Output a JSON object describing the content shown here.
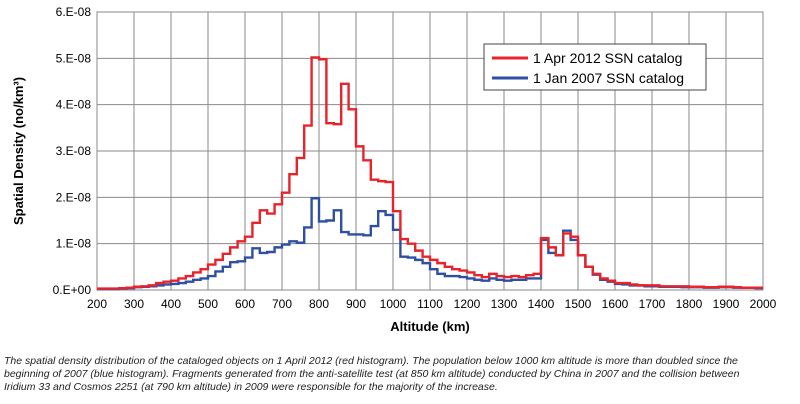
{
  "chart_data": {
    "type": "line",
    "step": true,
    "xlabel": "Altitude (km)",
    "ylabel": "Spatial Density (no/km³)",
    "xlim": [
      200,
      2000
    ],
    "ylim": [
      0,
      6e-08
    ],
    "xticks": [
      200,
      300,
      400,
      500,
      600,
      700,
      800,
      900,
      1000,
      1100,
      1200,
      1300,
      1400,
      1500,
      1600,
      1700,
      1800,
      1900,
      2000
    ],
    "xtick_labels": [
      "200",
      "300",
      "400",
      "500",
      "600",
      "700",
      "800",
      "900",
      "1000",
      "1100",
      "1200",
      "1300",
      "1400",
      "1500",
      "1600",
      "1700",
      "1800",
      "1900",
      "2000"
    ],
    "yticks": [
      0,
      1e-08,
      2e-08,
      3e-08,
      4e-08,
      5e-08,
      6e-08
    ],
    "ytick_labels": [
      "0.E+00",
      "1.E-08",
      "2.E-08",
      "3.E-08",
      "4.E-08",
      "5.E-08",
      "6.E-08"
    ],
    "grid": true,
    "legend_position": "top-right",
    "x": [
      200,
      220,
      240,
      260,
      280,
      300,
      320,
      340,
      360,
      380,
      400,
      420,
      440,
      460,
      480,
      500,
      520,
      540,
      560,
      580,
      600,
      620,
      640,
      660,
      680,
      700,
      720,
      740,
      760,
      780,
      800,
      820,
      840,
      860,
      880,
      900,
      920,
      940,
      960,
      980,
      1000,
      1020,
      1040,
      1060,
      1080,
      1100,
      1120,
      1140,
      1160,
      1180,
      1200,
      1220,
      1240,
      1260,
      1280,
      1300,
      1320,
      1340,
      1360,
      1380,
      1400,
      1420,
      1440,
      1460,
      1480,
      1500,
      1520,
      1540,
      1560,
      1580,
      1600,
      1620,
      1640,
      1660,
      1680,
      1700,
      1720,
      1740,
      1760,
      1780,
      1800,
      1820,
      1840,
      1860,
      1880,
      1900,
      1920,
      1940,
      1960,
      1980
    ],
    "series": [
      {
        "name": "1 Apr 2012 SSN catalog",
        "color": "#e8232a",
        "values": [
          3e-10,
          3e-10,
          3e-10,
          4e-10,
          5e-10,
          7e-10,
          8e-10,
          1e-09,
          1.5e-09,
          1.8e-09,
          2e-09,
          2.5e-09,
          3e-09,
          3.8e-09,
          4.5e-09,
          5.5e-09,
          6.5e-09,
          7.8e-09,
          9.2e-09,
          1.05e-08,
          1.15e-08,
          1.45e-08,
          1.72e-08,
          1.65e-08,
          1.85e-08,
          2.1e-08,
          2.5e-08,
          2.85e-08,
          3.55e-08,
          5.02e-08,
          4.98e-08,
          3.6e-08,
          3.58e-08,
          4.45e-08,
          3.9e-08,
          3.1e-08,
          2.8e-08,
          2.38e-08,
          2.35e-08,
          2.33e-08,
          1.7e-08,
          1.1e-08,
          1e-08,
          8.5e-09,
          7.2e-09,
          6.5e-09,
          5.8e-09,
          5e-09,
          4.5e-09,
          4.2e-09,
          3.8e-09,
          3.2e-09,
          2.8e-09,
          3.5e-09,
          3e-09,
          2.8e-09,
          3e-09,
          2.8e-09,
          3.2e-09,
          3.5e-09,
          1.12e-08,
          9.2e-09,
          7.5e-09,
          1.22e-08,
          1.15e-08,
          7.5e-09,
          5e-09,
          3.5e-09,
          2.5e-09,
          2e-09,
          1.5e-09,
          1.5e-09,
          1.2e-09,
          1e-09,
          1e-09,
          1e-09,
          8e-10,
          8e-10,
          8e-10,
          8e-10,
          7e-10,
          7e-10,
          6e-10,
          6e-10,
          7e-10,
          7e-10,
          6e-10,
          5e-10,
          5e-10,
          5e-10
        ]
      },
      {
        "name": "1 Jan 2007 SSN catalog",
        "color": "#2f4fa3",
        "values": [
          2e-10,
          2e-10,
          2e-10,
          3e-10,
          4e-10,
          6e-10,
          7e-10,
          8e-10,
          1e-09,
          1.2e-09,
          1.3e-09,
          1.5e-09,
          1.8e-09,
          2.2e-09,
          2.5e-09,
          3e-09,
          4e-09,
          5e-09,
          6e-09,
          6.2e-09,
          7e-09,
          9e-09,
          8e-09,
          8.2e-09,
          9.2e-09,
          9.8e-09,
          1.05e-08,
          1.02e-08,
          1.35e-08,
          1.98e-08,
          1.48e-08,
          1.5e-08,
          1.72e-08,
          1.25e-08,
          1.2e-08,
          1.2e-08,
          1.18e-08,
          1.38e-08,
          1.7e-08,
          1.62e-08,
          1.3e-08,
          7.2e-09,
          7e-09,
          6.5e-09,
          5.8e-09,
          4.5e-09,
          3.5e-09,
          3e-09,
          3e-09,
          2.8e-09,
          2.5e-09,
          2.2e-09,
          2e-09,
          2.5e-09,
          2.2e-09,
          2e-09,
          2.2e-09,
          2.2e-09,
          2.5e-09,
          2.5e-09,
          1.08e-08,
          8e-09,
          7.5e-09,
          1.28e-08,
          1.08e-08,
          7.5e-09,
          5e-09,
          3.3e-09,
          2.2e-09,
          1.8e-09,
          1.3e-09,
          1.2e-09,
          1e-09,
          1e-09,
          8e-10,
          8e-10,
          7e-10,
          7e-10,
          7e-10,
          6e-10,
          6e-10,
          6e-10,
          5e-10,
          5e-10,
          6e-10,
          6e-10,
          5e-10,
          5e-10,
          5e-10,
          4e-10
        ]
      }
    ]
  },
  "caption_lines": [
    "The spatial density distribution of the cataloged objects on 1 April 2012 (red histogram). The population below 1000 km altitude is more than doubled since the",
    "beginning of 2007 (blue histogram). Fragments generated from the anti-satellite test (at 850 km altitude) conducted by China in 2007 and the collision between",
    "Iridium 33 and Cosmos 2251 (at 790 km altitude) in 2009 were responsible for the majority of the increase."
  ]
}
